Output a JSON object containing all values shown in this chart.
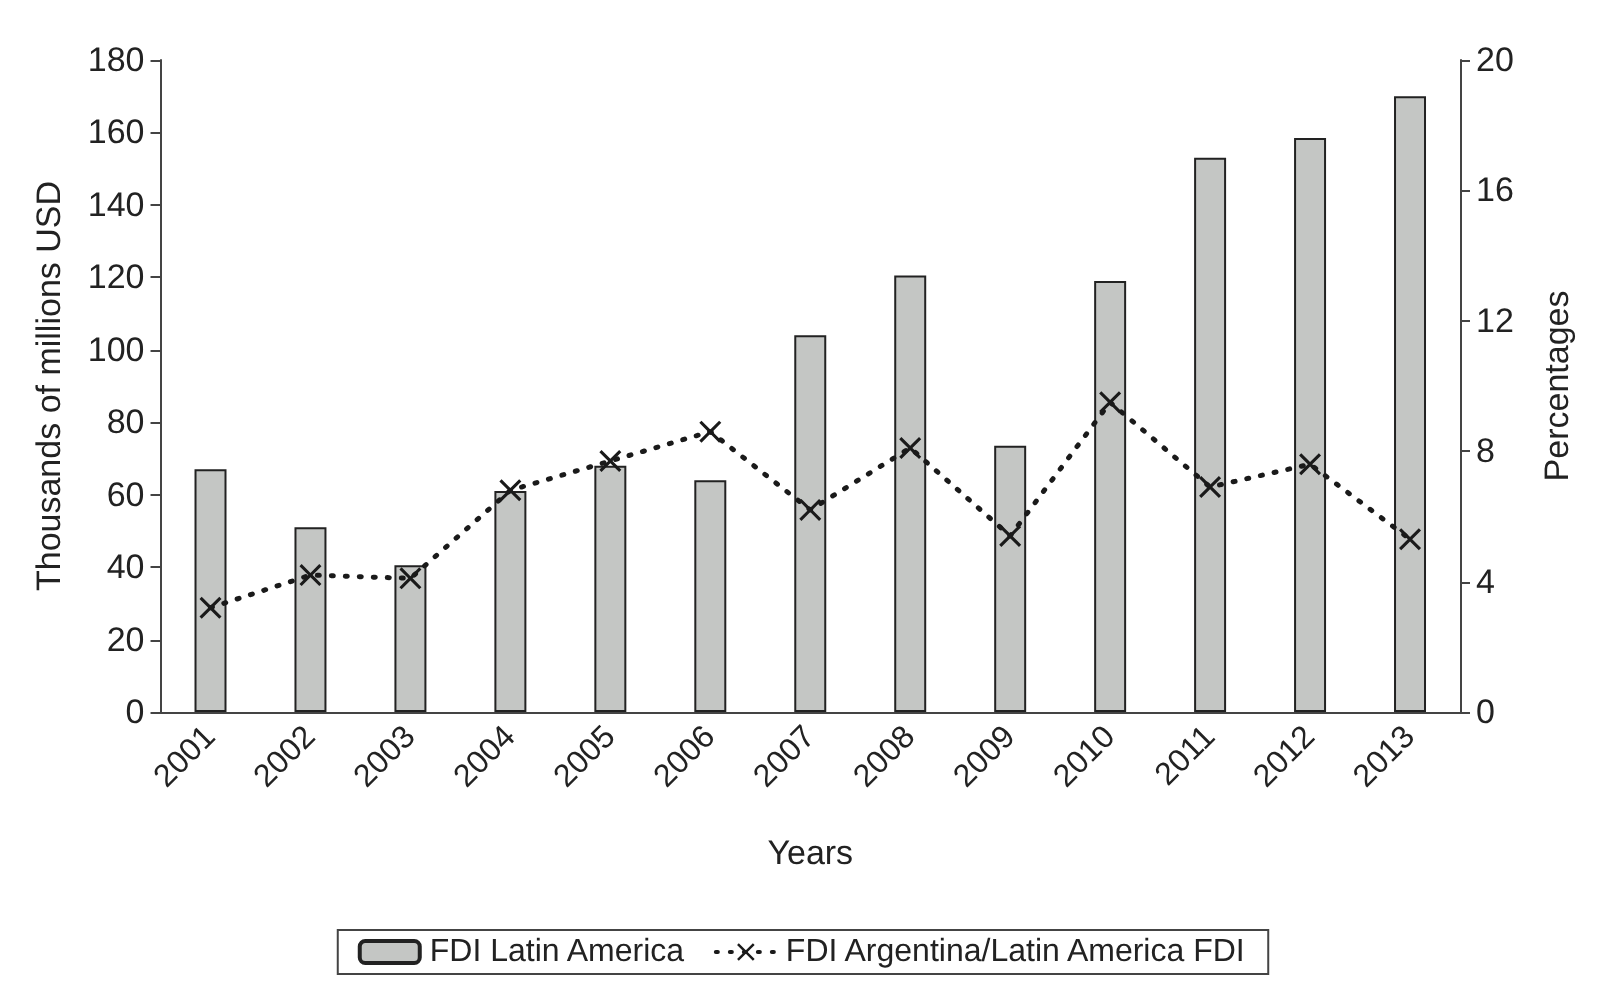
{
  "chart_data": {
    "type": "bar",
    "xlabel": "Years",
    "ylabel": "Thousands of millions USD",
    "y2label": "Percentages",
    "categories": [
      "2001",
      "2002",
      "2003",
      "2004",
      "2005",
      "2006",
      "2007",
      "2008",
      "2009",
      "2010",
      "2011",
      "2012",
      "2013"
    ],
    "series": [
      {
        "name": "FDI Latin America",
        "color": "#c4c6c4",
        "values": [
          67,
          51,
          40.5,
          61,
          68,
          64,
          104,
          120.5,
          73.5,
          119,
          153,
          158.5,
          170
        ]
      },
      {
        "name": "FDI Argentina/Latin America FDI",
        "type": "line",
        "axis": "y2",
        "color": "#1a1a1a",
        "marker": "cross",
        "line_style": "dotted",
        "values": [
          3.2,
          4.2,
          4.1,
          6.8,
          7.7,
          8.6,
          6.2,
          8.1,
          5.4,
          9.5,
          6.9,
          7.6,
          5.3
        ]
      }
    ],
    "ylim": [
      0,
      180
    ],
    "yticks": [
      0,
      20,
      40,
      60,
      80,
      100,
      120,
      140,
      160,
      180
    ],
    "y2lim": [
      0,
      20
    ],
    "y2ticks": [
      0,
      4,
      8,
      12,
      16,
      20
    ],
    "grid": false,
    "legend": "bottom"
  }
}
